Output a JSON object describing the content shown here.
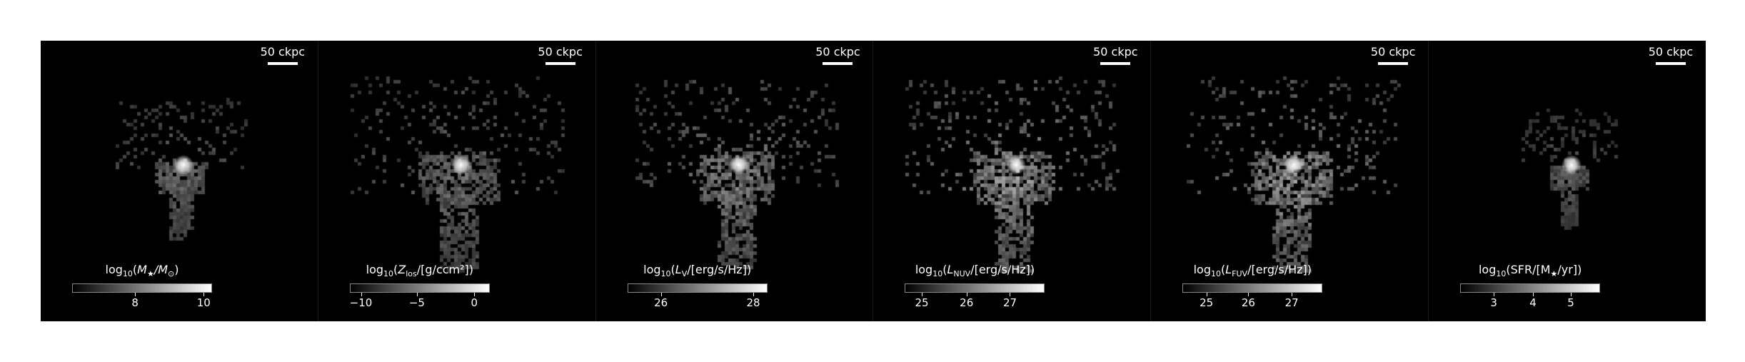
{
  "panels": [
    {
      "scalebar": "50 ckpc",
      "colorbar": {
        "prefix": "log",
        "sub": "10",
        "open": "(",
        "symbol": "M",
        "symbol_sub": "★",
        "rest": "/M",
        "rest_sub": "⊙",
        "close": ")",
        "ticks": [
          "8",
          "10"
        ],
        "tick_fracs": [
          0.45,
          0.94
        ]
      },
      "brightness": 0.55,
      "spread": 0.6,
      "peak_scale": 1.0
    },
    {
      "scalebar": "50 ckpc",
      "colorbar": {
        "prefix": "log",
        "sub": "10",
        "open": "(",
        "symbol": "Z",
        "symbol_sub": "los",
        "rest": "/[g/ccm²]",
        "rest_sub": "",
        "close": ")",
        "ticks": [
          "−10",
          "−5",
          "0"
        ],
        "tick_fracs": [
          0.08,
          0.48,
          0.89
        ]
      },
      "brightness": 0.55,
      "spread": 1.0,
      "peak_scale": 1.0
    },
    {
      "scalebar": "50 ckpc",
      "colorbar": {
        "prefix": "log",
        "sub": "10",
        "open": "(",
        "symbol": "L",
        "symbol_sub": "V",
        "rest": "/[erg/s/Hz]",
        "rest_sub": "",
        "close": ")",
        "ticks": [
          "26",
          "28"
        ],
        "tick_fracs": [
          0.24,
          0.9
        ]
      },
      "brightness": 0.7,
      "spread": 0.95,
      "peak_scale": 1.0
    },
    {
      "scalebar": "50 ckpc",
      "colorbar": {
        "prefix": "log",
        "sub": "10",
        "open": "(",
        "symbol": "L",
        "symbol_sub": "NUV",
        "rest": "/[erg/s/Hz]",
        "rest_sub": "",
        "close": ")",
        "ticks": [
          "25",
          "26",
          "27"
        ],
        "tick_fracs": [
          0.12,
          0.44,
          0.75
        ]
      },
      "brightness": 0.85,
      "spread": 1.0,
      "peak_scale": 1.0
    },
    {
      "scalebar": "50 ckpc",
      "colorbar": {
        "prefix": "log",
        "sub": "10",
        "open": "(",
        "symbol": "L",
        "symbol_sub": "FUV",
        "rest": "/[erg/s/Hz]",
        "rest_sub": "",
        "close": ")",
        "ticks": [
          "25",
          "26",
          "27"
        ],
        "tick_fracs": [
          0.17,
          0.47,
          0.78
        ]
      },
      "brightness": 0.85,
      "spread": 1.0,
      "peak_scale": 1.0
    },
    {
      "scalebar": "50 ckpc",
      "colorbar": {
        "prefix": "log",
        "sub": "10",
        "open": "(SFR/[M",
        "symbol": "",
        "symbol_sub": "★",
        "rest": "/yr]",
        "rest_sub": "",
        "close": ")",
        "ticks": [
          "3",
          "4",
          "5"
        ],
        "tick_fracs": [
          0.24,
          0.52,
          0.79
        ]
      },
      "brightness": 0.45,
      "spread": 0.45,
      "peak_scale": 1.0
    }
  ]
}
